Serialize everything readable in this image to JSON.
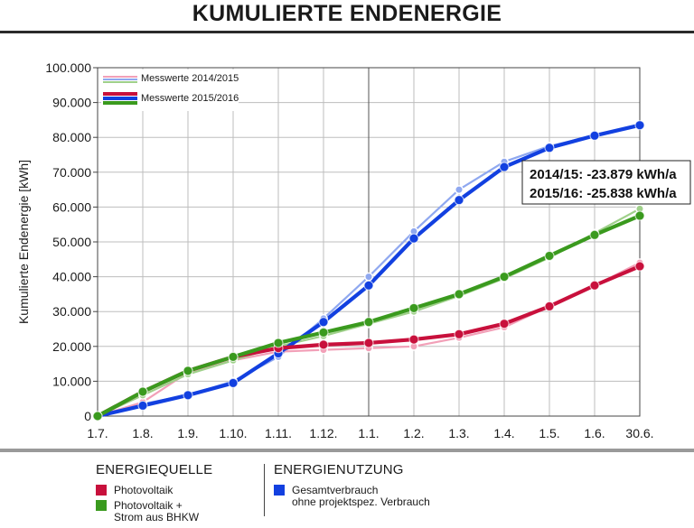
{
  "title": "KUMULIERTE ENDENERGIE",
  "chart_data": {
    "type": "line",
    "ylabel": "Kumulierte Endenergie [kWh]",
    "xlabel": "",
    "categories": [
      "1.7.",
      "1.8.",
      "1.9.",
      "1.10.",
      "1.11.",
      "1.12.",
      "1.1.",
      "1.2.",
      "1.3.",
      "1.4.",
      "1.5.",
      "1.6.",
      "30.6."
    ],
    "yticks": [
      "0",
      "10.000",
      "20.000",
      "30.000",
      "40.000",
      "50.000",
      "60.000",
      "70.000",
      "80.000",
      "90.000",
      "100.000"
    ],
    "ylim": [
      0,
      100000
    ],
    "grid": true,
    "legend_placement": "top-left",
    "legend": [
      "Messwerte 2014/2015",
      "Messwerte 2015/2016"
    ],
    "series": [
      {
        "period": "2014/2015",
        "color": "#8fa8f0",
        "values": [
          0,
          3500,
          6000,
          10000,
          17000,
          28000,
          40000,
          53000,
          65000,
          73000,
          77500,
          80500,
          83500
        ]
      },
      {
        "period": "2014/2015",
        "color": "#f2a0b8",
        "values": [
          0,
          4000,
          12500,
          16000,
          18500,
          19000,
          19500,
          20000,
          22500,
          25500,
          31500,
          37500,
          44000
        ]
      },
      {
        "period": "2014/2015",
        "color": "#9fd08a",
        "values": [
          0,
          6000,
          12000,
          16000,
          20000,
          23000,
          26500,
          30000,
          34500,
          39500,
          45500,
          52500,
          59500
        ]
      },
      {
        "period": "2015/2016",
        "color": "#1240e0",
        "values": [
          0,
          3000,
          6000,
          9500,
          18000,
          27000,
          37500,
          51000,
          62000,
          71500,
          77000,
          80500,
          83500
        ]
      },
      {
        "period": "2015/2016",
        "color": "#c8103c",
        "values": [
          0,
          7000,
          13000,
          17000,
          19500,
          20500,
          21000,
          22000,
          23500,
          26500,
          31500,
          37500,
          43000
        ]
      },
      {
        "period": "2015/2016",
        "color": "#3a9a1e",
        "values": [
          0,
          7000,
          13000,
          17000,
          21000,
          24000,
          27000,
          31000,
          35000,
          40000,
          46000,
          52000,
          57500
        ]
      }
    ],
    "annotation": [
      "2014/15: -23.879 kWh/a",
      "2015/16: -25.838 kWh/a"
    ]
  },
  "legend_bottom": {
    "energiequelle": {
      "title": "ENERGIEQUELLE",
      "items": [
        {
          "color": "#c8103c",
          "lines": [
            "Photovoltaik"
          ]
        },
        {
          "color": "#3a9a1e",
          "lines": [
            "Photovoltaik +",
            "Strom aus BHKW"
          ]
        }
      ]
    },
    "energienutzung": {
      "title": "ENERGIENUTZUNG",
      "items": [
        {
          "color": "#1240e0",
          "lines": [
            "Gesamtverbrauch",
            "ohne projektspez. Verbrauch"
          ]
        }
      ]
    }
  }
}
